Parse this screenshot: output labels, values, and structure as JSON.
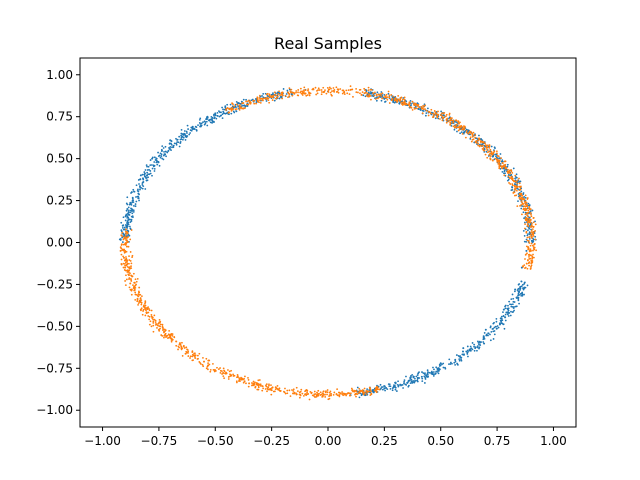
{
  "chart_data": {
    "type": "scatter",
    "title": "Real Samples",
    "xlabel": "",
    "ylabel": "",
    "xlim": [
      -1.1,
      1.1
    ],
    "ylim": [
      -1.1,
      1.1
    ],
    "xticks": [
      -1.0,
      -0.75,
      -0.5,
      -0.25,
      0.0,
      0.25,
      0.5,
      0.75,
      1.0
    ],
    "yticks": [
      -1.0,
      -0.75,
      -0.5,
      -0.25,
      0.0,
      0.25,
      0.5,
      0.75,
      1.0
    ],
    "xtick_labels": [
      "−1.00",
      "−0.75",
      "−0.50",
      "−0.25",
      "0.00",
      "0.25",
      "0.50",
      "0.75",
      "1.00"
    ],
    "ytick_labels": [
      "−1.00",
      "−0.75",
      "−0.50",
      "−0.25",
      "0.00",
      "0.25",
      "0.50",
      "0.75",
      "1.00"
    ],
    "grid": false,
    "legend": "none",
    "shape": "noisy ellipse ring, x-radius ~0.9, y-radius ~0.9, band width ~0.06",
    "series": [
      {
        "color": "#1f77b4",
        "arcs_deg": [
          [
            0,
            80
          ],
          [
            100,
            180
          ],
          [
            278,
            345
          ]
        ],
        "points": [
          [
            0.0,
            0.9
          ],
          [
            -0.1,
            0.91
          ],
          [
            -0.2,
            0.89
          ],
          [
            -0.3,
            0.87
          ],
          [
            -0.4,
            0.83
          ],
          [
            -0.5,
            0.77
          ],
          [
            -0.6,
            0.69
          ],
          [
            -0.7,
            0.61
          ],
          [
            -0.78,
            0.5
          ],
          [
            -0.83,
            0.4
          ],
          [
            -0.87,
            0.3
          ],
          [
            -0.89,
            0.2
          ],
          [
            -0.91,
            0.1
          ],
          [
            -0.92,
            0.02
          ],
          [
            0.1,
            -0.91
          ],
          [
            0.2,
            -0.88
          ],
          [
            0.3,
            -0.84
          ],
          [
            0.4,
            -0.78
          ],
          [
            0.5,
            -0.72
          ],
          [
            0.6,
            -0.63
          ],
          [
            0.7,
            -0.52
          ],
          [
            0.78,
            -0.4
          ],
          [
            0.83,
            -0.28
          ],
          [
            0.86,
            -0.15
          ],
          [
            0.88,
            -0.05
          ]
        ]
      },
      {
        "color": "#ff7f0e",
        "arcs_deg": [
          [
            -10,
            120
          ],
          [
            175,
            285
          ]
        ],
        "points": [
          [
            0.1,
            0.91
          ],
          [
            0.2,
            0.89
          ],
          [
            0.3,
            0.86
          ],
          [
            0.4,
            0.82
          ],
          [
            0.5,
            0.76
          ],
          [
            0.6,
            0.68
          ],
          [
            0.7,
            0.58
          ],
          [
            0.78,
            0.46
          ],
          [
            0.84,
            0.33
          ],
          [
            0.88,
            0.2
          ],
          [
            0.91,
            0.05
          ],
          [
            0.9,
            -0.05
          ],
          [
            -0.92,
            -0.05
          ],
          [
            -0.9,
            -0.15
          ],
          [
            -0.87,
            -0.28
          ],
          [
            -0.83,
            -0.4
          ],
          [
            -0.75,
            -0.52
          ],
          [
            -0.65,
            -0.63
          ],
          [
            -0.55,
            -0.71
          ],
          [
            -0.45,
            -0.78
          ],
          [
            -0.35,
            -0.84
          ],
          [
            -0.25,
            -0.88
          ],
          [
            -0.15,
            -0.9
          ],
          [
            -0.05,
            -0.91
          ],
          [
            0.05,
            -0.91
          ]
        ]
      }
    ]
  }
}
